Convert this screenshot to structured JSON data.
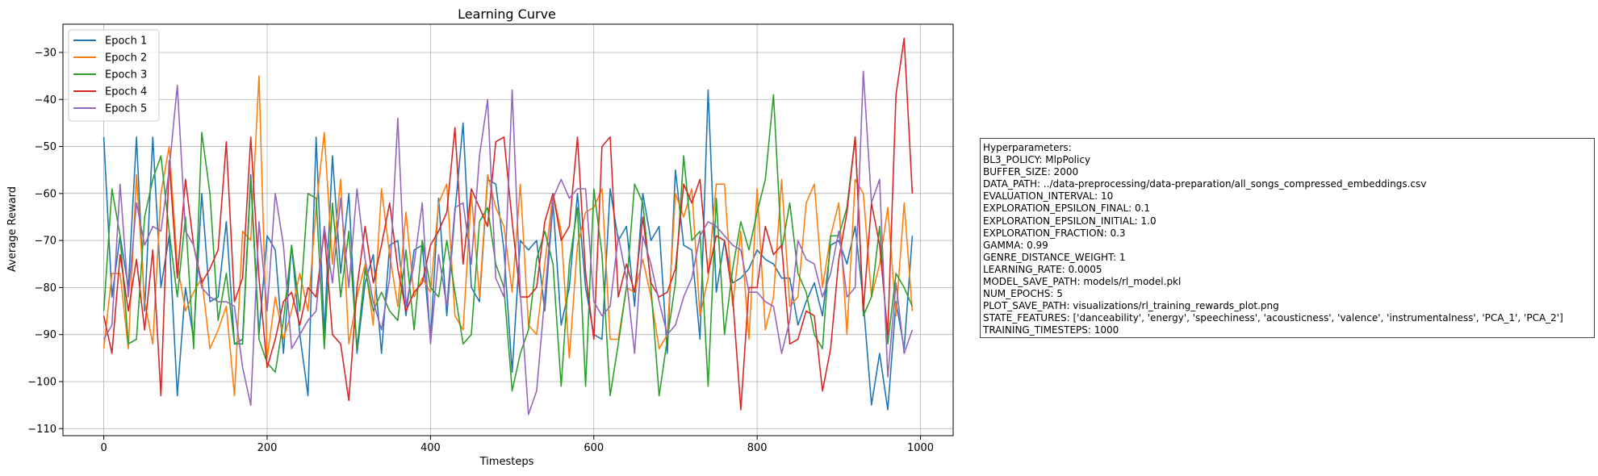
{
  "chart_data": {
    "type": "line",
    "title": "Learning Curve",
    "xlabel": "Timesteps",
    "ylabel": "Average Reward",
    "xlim": [
      -50,
      1040
    ],
    "ylim": [
      -111.5,
      -24
    ],
    "xticks": [
      0,
      200,
      400,
      600,
      800,
      1000
    ],
    "yticks": [
      -110,
      -100,
      -90,
      -80,
      -70,
      -60,
      -50,
      -40,
      -30
    ],
    "xtick_labels": [
      "0",
      "200",
      "400",
      "600",
      "800",
      "1000"
    ],
    "ytick_labels": [
      "−110",
      "−100",
      "−90",
      "−80",
      "−70",
      "−60",
      "−50",
      "−40",
      "−30"
    ],
    "grid": true,
    "legend_position": "top-left",
    "x": [
      0,
      10,
      20,
      30,
      40,
      50,
      60,
      70,
      80,
      90,
      100,
      110,
      120,
      130,
      140,
      150,
      160,
      170,
      180,
      190,
      200,
      210,
      220,
      230,
      240,
      250,
      260,
      270,
      280,
      290,
      300,
      310,
      320,
      330,
      340,
      350,
      360,
      370,
      380,
      390,
      400,
      410,
      420,
      430,
      440,
      450,
      460,
      470,
      480,
      490,
      500,
      510,
      520,
      530,
      540,
      550,
      560,
      570,
      580,
      590,
      600,
      610,
      620,
      630,
      640,
      650,
      660,
      670,
      680,
      690,
      700,
      710,
      720,
      730,
      740,
      750,
      760,
      770,
      780,
      790,
      800,
      810,
      820,
      830,
      840,
      850,
      860,
      870,
      880,
      890,
      900,
      910,
      920,
      930,
      940,
      950,
      960,
      970,
      980,
      990
    ],
    "series": [
      {
        "name": "Epoch 1",
        "color": "#1f77b4",
        "values": [
          -48,
          -82,
          -69,
          -80,
          -48,
          -85,
          -48,
          -80,
          -69,
          -103,
          -80,
          -91,
          -60,
          -83,
          -82,
          -66,
          -92,
          -91,
          -56,
          -90,
          -69,
          -72,
          -94,
          -71,
          -90,
          -103,
          -48,
          -90,
          -52,
          -77,
          -60,
          -94,
          -79,
          -73,
          -94,
          -71,
          -70,
          -86,
          -72,
          -71,
          -91,
          -61,
          -86,
          -64,
          -45,
          -80,
          -83,
          -57,
          -58,
          -72,
          -98,
          -70,
          -72,
          -70,
          -85,
          -62,
          -88,
          -80,
          -60,
          -80,
          -90,
          -91,
          -59,
          -70,
          -67,
          -84,
          -60,
          -70,
          -67,
          -94,
          -55,
          -71,
          -72,
          -91,
          -38,
          -81,
          -70,
          -79,
          -78,
          -76,
          -72,
          -74,
          -75,
          -78,
          -78,
          -88,
          -83,
          -79,
          -86,
          -71,
          -70,
          -75,
          -67,
          -83,
          -105,
          -94,
          -106,
          -83,
          -93,
          -69
        ]
      },
      {
        "name": "Epoch 2",
        "color": "#ff7f0e",
        "values": [
          -93,
          -77,
          -77,
          -93,
          -56,
          -83,
          -92,
          -60,
          -50,
          -75,
          -85,
          -81,
          -78,
          -93,
          -89,
          -84,
          -103,
          -68,
          -70,
          -35,
          -95,
          -82,
          -91,
          -85,
          -77,
          -85,
          -63,
          -47,
          -75,
          -57,
          -92,
          -82,
          -75,
          -88,
          -59,
          -73,
          -84,
          -64,
          -82,
          -78,
          -81,
          -62,
          -58,
          -86,
          -89,
          -60,
          -82,
          -56,
          -63,
          -67,
          -81,
          -58,
          -88,
          -90,
          -75,
          -60,
          -68,
          -95,
          -71,
          -64,
          -63,
          -59,
          -91,
          -91,
          -80,
          -81,
          -74,
          -82,
          -93,
          -90,
          -60,
          -65,
          -59,
          -86,
          -78,
          -58,
          -58,
          -84,
          -68,
          -91,
          -59,
          -89,
          -82,
          -57,
          -84,
          -82,
          -62,
          -58,
          -80,
          -69,
          -62,
          -90,
          -57,
          -60,
          -82,
          -75,
          -63,
          -86,
          -62,
          -85
        ]
      },
      {
        "name": "Epoch 3",
        "color": "#2ca02c",
        "values": [
          -85,
          -59,
          -69,
          -92,
          -91,
          -65,
          -57,
          -52,
          -68,
          -82,
          -65,
          -93,
          -47,
          -60,
          -87,
          -77,
          -92,
          -92,
          -57,
          -91,
          -96,
          -98,
          -87,
          -71,
          -85,
          -60,
          -61,
          -93,
          -62,
          -82,
          -68,
          -93,
          -76,
          -85,
          -81,
          -85,
          -87,
          -72,
          -89,
          -70,
          -80,
          -82,
          -70,
          -81,
          -92,
          -90,
          -66,
          -63,
          -75,
          -80,
          -102,
          -94,
          -89,
          -74,
          -68,
          -75,
          -101,
          -75,
          -63,
          -101,
          -59,
          -73,
          -103,
          -92,
          -80,
          -58,
          -62,
          -80,
          -103,
          -91,
          -79,
          -52,
          -70,
          -68,
          -101,
          -61,
          -90,
          -76,
          -66,
          -72,
          -64,
          -57,
          -39,
          -72,
          -62,
          -77,
          -81,
          -90,
          -93,
          -69,
          -69,
          -63,
          -48,
          -86,
          -82,
          -67,
          -92,
          -77,
          -80,
          -84
        ]
      },
      {
        "name": "Epoch 4",
        "color": "#d62728",
        "values": [
          -86,
          -94,
          -73,
          -85,
          -74,
          -89,
          -72,
          -103,
          -53,
          -78,
          -57,
          -71,
          -79,
          -76,
          -72,
          -49,
          -83,
          -78,
          -48,
          -78,
          -97,
          -91,
          -83,
          -81,
          -88,
          -80,
          -82,
          -68,
          -90,
          -92,
          -104,
          -80,
          -67,
          -79,
          -71,
          -62,
          -76,
          -85,
          -81,
          -79,
          -71,
          -68,
          -64,
          -46,
          -75,
          -59,
          -63,
          -67,
          -49,
          -48,
          -66,
          -82,
          -82,
          -80,
          -66,
          -60,
          -70,
          -67,
          -48,
          -77,
          -91,
          -50,
          -48,
          -82,
          -75,
          -81,
          -65,
          -79,
          -82,
          -81,
          -76,
          -58,
          -62,
          -57,
          -77,
          -69,
          -70,
          -82,
          -106,
          -80,
          -80,
          -67,
          -73,
          -71,
          -92,
          -91,
          -85,
          -86,
          -102,
          -93,
          -74,
          -64,
          -48,
          -85,
          -62,
          -71,
          -90,
          -39,
          -27,
          -60
        ]
      },
      {
        "name": "Epoch 5",
        "color": "#9467bd",
        "values": [
          -91,
          -88,
          -58,
          -82,
          -62,
          -71,
          -67,
          -68,
          -55,
          -37,
          -68,
          -71,
          -80,
          -82,
          -83,
          -83,
          -84,
          -97,
          -105,
          -66,
          -85,
          -60,
          -71,
          -93,
          -90,
          -87,
          -85,
          -67,
          -79,
          -61,
          -80,
          -59,
          -74,
          -83,
          -89,
          -78,
          -44,
          -84,
          -75,
          -62,
          -92,
          -73,
          -84,
          -63,
          -62,
          -75,
          -52,
          -40,
          -78,
          -82,
          -38,
          -81,
          -107,
          -102,
          -82,
          -61,
          -57,
          -61,
          -59,
          -59,
          -83,
          -86,
          -84,
          -69,
          -78,
          -94,
          -69,
          -75,
          -83,
          -90,
          -88,
          -82,
          -78,
          -69,
          -66,
          -67,
          -69,
          -71,
          -72,
          -81,
          -81,
          -83,
          -84,
          -94,
          -87,
          -70,
          -74,
          -75,
          -82,
          -77,
          -68,
          -82,
          -80,
          -34,
          -62,
          -57,
          -99,
          -79,
          -94,
          -89
        ]
      }
    ]
  },
  "hyperparameters": {
    "lines": [
      "Hyperparameters:",
      "BL3_POLICY: MlpPolicy",
      "BUFFER_SIZE: 2000",
      "DATA_PATH: ../data-preprocessing/data-preparation/all_songs_compressed_embeddings.csv",
      "EVALUATION_INTERVAL: 10",
      "EXPLORATION_EPSILON_FINAL: 0.1",
      "EXPLORATION_EPSILON_INITIAL: 1.0",
      "EXPLORATION_FRACTION: 0.3",
      "GAMMA: 0.99",
      "GENRE_DISTANCE_WEIGHT: 1",
      "LEARNING_RATE: 0.0005",
      "MODEL_SAVE_PATH: models/rl_model.pkl",
      "NUM_EPOCHS: 5",
      "PLOT_SAVE_PATH: visualizations/rl_training_rewards_plot.png",
      "STATE_FEATURES: ['danceability', 'energy', 'speechiness', 'acousticness', 'valence', 'instrumentalness', 'PCA_1', 'PCA_2']",
      "TRAINING_TIMESTEPS: 1000"
    ]
  }
}
